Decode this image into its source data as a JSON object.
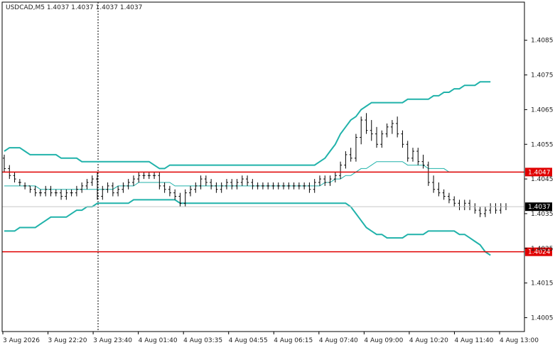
{
  "header": {
    "label": "USDCAD,M5  1.4037 1.4037 1.4037 1.4037"
  },
  "chart_data": {
    "type": "candlestick",
    "symbol": "USDCAD",
    "timeframe": "M5",
    "ylim": [
      1.4001,
      1.4096
    ],
    "y_ticks": [
      "1.4085",
      "1.4075",
      "1.4065",
      "1.4055",
      "1.4045",
      "1.4035",
      "1.4025",
      "1.4015",
      "1.4005"
    ],
    "x_ticks": [
      "3 Aug 2026",
      "3 Aug 22:20",
      "3 Aug 23:40",
      "4 Aug 01:40",
      "4 Aug 03:35",
      "4 Aug 04:55",
      "4 Aug 06:15",
      "4 Aug 07:40",
      "4 Aug 09:00",
      "4 Aug 10:20",
      "4 Aug 11:40",
      "4 Aug 13:00"
    ],
    "horizontal_lines": [
      {
        "label": "1.4047",
        "value": 1.4047,
        "color": "#e00000"
      },
      {
        "label": "1.4024",
        "value": 1.4024,
        "color": "#e00000"
      }
    ],
    "current_price": {
      "label": "1.4037",
      "value": 1.4037
    },
    "series": [
      {
        "name": "",
        "kind": "ohlc",
        "color": "#000000",
        "values": [
          [
            1.4051,
            1.4052,
            1.4047,
            1.4048
          ],
          [
            1.4048,
            1.4049,
            1.4045,
            1.4046
          ],
          [
            1.4046,
            1.4047,
            1.4044,
            1.4045
          ],
          [
            1.4044,
            1.4045,
            1.4043,
            1.4044
          ],
          [
            1.4043,
            1.4044,
            1.4042,
            1.4043
          ],
          [
            1.4043,
            1.4043,
            1.4041,
            1.4042
          ],
          [
            1.4042,
            1.4043,
            1.404,
            1.4041
          ],
          [
            1.4041,
            1.4042,
            1.404,
            1.4041
          ],
          [
            1.4041,
            1.4043,
            1.404,
            1.4042
          ],
          [
            1.4042,
            1.4043,
            1.404,
            1.4041
          ],
          [
            1.4041,
            1.4042,
            1.404,
            1.4041
          ],
          [
            1.4041,
            1.4042,
            1.4039,
            1.404
          ],
          [
            1.404,
            1.4042,
            1.4039,
            1.4041
          ],
          [
            1.4041,
            1.4042,
            1.404,
            1.4041
          ],
          [
            1.4041,
            1.4043,
            1.404,
            1.4042
          ],
          [
            1.4042,
            1.4044,
            1.4041,
            1.4043
          ],
          [
            1.4043,
            1.4045,
            1.4042,
            1.4044
          ],
          [
            1.4044,
            1.4046,
            1.4043,
            1.4045
          ],
          [
            1.4045,
            1.4047,
            1.4039,
            1.404
          ],
          [
            1.404,
            1.4043,
            1.4039,
            1.4042
          ],
          [
            1.4042,
            1.4044,
            1.4041,
            1.4043
          ],
          [
            1.4043,
            1.4044,
            1.404,
            1.4041
          ],
          [
            1.4041,
            1.4043,
            1.404,
            1.4042
          ],
          [
            1.4042,
            1.4044,
            1.4041,
            1.4043
          ],
          [
            1.4043,
            1.4045,
            1.4042,
            1.4044
          ],
          [
            1.4044,
            1.4046,
            1.4043,
            1.4045
          ],
          [
            1.4045,
            1.4047,
            1.4044,
            1.4046
          ],
          [
            1.4046,
            1.4047,
            1.4045,
            1.4046
          ],
          [
            1.4046,
            1.4047,
            1.4045,
            1.4046
          ],
          [
            1.4046,
            1.4047,
            1.4045,
            1.4046
          ],
          [
            1.4046,
            1.4047,
            1.4042,
            1.4043
          ],
          [
            1.4043,
            1.4044,
            1.4041,
            1.4042
          ],
          [
            1.4042,
            1.4043,
            1.404,
            1.4041
          ],
          [
            1.4041,
            1.4042,
            1.4039,
            1.404
          ],
          [
            1.404,
            1.4041,
            1.4037,
            1.4038
          ],
          [
            1.4038,
            1.4042,
            1.4037,
            1.4041
          ],
          [
            1.4041,
            1.4043,
            1.404,
            1.4042
          ],
          [
            1.4042,
            1.4044,
            1.4041,
            1.4043
          ],
          [
            1.4043,
            1.4046,
            1.4042,
            1.4045
          ],
          [
            1.4045,
            1.4046,
            1.4043,
            1.4044
          ],
          [
            1.4044,
            1.4045,
            1.4042,
            1.4043
          ],
          [
            1.4043,
            1.4044,
            1.4041,
            1.4042
          ],
          [
            1.4042,
            1.4044,
            1.4041,
            1.4043
          ],
          [
            1.4043,
            1.4045,
            1.4042,
            1.4044
          ],
          [
            1.4044,
            1.4045,
            1.4042,
            1.4043
          ],
          [
            1.4043,
            1.4045,
            1.4042,
            1.4044
          ],
          [
            1.4044,
            1.4046,
            1.4043,
            1.4045
          ],
          [
            1.4045,
            1.4046,
            1.4043,
            1.4044
          ],
          [
            1.4044,
            1.4045,
            1.4042,
            1.4043
          ],
          [
            1.4043,
            1.4044,
            1.4042,
            1.4043
          ],
          [
            1.4043,
            1.4044,
            1.4042,
            1.4043
          ],
          [
            1.4043,
            1.4044,
            1.4042,
            1.4043
          ],
          [
            1.4043,
            1.4044,
            1.4042,
            1.4043
          ],
          [
            1.4043,
            1.4044,
            1.4042,
            1.4043
          ],
          [
            1.4043,
            1.4044,
            1.4042,
            1.4043
          ],
          [
            1.4043,
            1.4044,
            1.4042,
            1.4043
          ],
          [
            1.4043,
            1.4044,
            1.4042,
            1.4043
          ],
          [
            1.4043,
            1.4044,
            1.4042,
            1.4043
          ],
          [
            1.4043,
            1.4044,
            1.4042,
            1.4043
          ],
          [
            1.4043,
            1.4044,
            1.4041,
            1.4042
          ],
          [
            1.4042,
            1.4045,
            1.4041,
            1.4044
          ],
          [
            1.4044,
            1.4046,
            1.4043,
            1.4045
          ],
          [
            1.4045,
            1.4046,
            1.4043,
            1.4044
          ],
          [
            1.4044,
            1.4046,
            1.4043,
            1.4045
          ],
          [
            1.4045,
            1.4047,
            1.4044,
            1.4046
          ],
          [
            1.4046,
            1.405,
            1.4045,
            1.4049
          ],
          [
            1.4049,
            1.4053,
            1.4048,
            1.4052
          ],
          [
            1.4052,
            1.4054,
            1.405,
            1.4051
          ],
          [
            1.4051,
            1.4058,
            1.405,
            1.4057
          ],
          [
            1.4057,
            1.4063,
            1.4055,
            1.4062
          ],
          [
            1.4062,
            1.4064,
            1.4058,
            1.4059
          ],
          [
            1.4059,
            1.4062,
            1.4056,
            1.4058
          ],
          [
            1.4058,
            1.406,
            1.4054,
            1.4055
          ],
          [
            1.4055,
            1.4059,
            1.4054,
            1.4058
          ],
          [
            1.4058,
            1.4061,
            1.4057,
            1.406
          ],
          [
            1.406,
            1.4062,
            1.4058,
            1.4061
          ],
          [
            1.4061,
            1.4063,
            1.4057,
            1.4058
          ],
          [
            1.4058,
            1.4059,
            1.4054,
            1.4055
          ],
          [
            1.4055,
            1.4056,
            1.405,
            1.4051
          ],
          [
            1.4051,
            1.4054,
            1.405,
            1.4053
          ],
          [
            1.4053,
            1.4054,
            1.4049,
            1.405
          ],
          [
            1.405,
            1.4052,
            1.4048,
            1.4049
          ],
          [
            1.4049,
            1.405,
            1.4043,
            1.4044
          ],
          [
            1.4044,
            1.4046,
            1.4041,
            1.4042
          ],
          [
            1.4042,
            1.4044,
            1.404,
            1.4041
          ],
          [
            1.4041,
            1.4042,
            1.4039,
            1.404
          ],
          [
            1.404,
            1.4041,
            1.4038,
            1.4039
          ],
          [
            1.4039,
            1.404,
            1.4037,
            1.4038
          ],
          [
            1.4038,
            1.4039,
            1.4036,
            1.4037
          ],
          [
            1.4037,
            1.4039,
            1.4036,
            1.4038
          ],
          [
            1.4038,
            1.4039,
            1.4036,
            1.4037
          ],
          [
            1.4037,
            1.4038,
            1.4035,
            1.4036
          ],
          [
            1.4036,
            1.4037,
            1.4034,
            1.4035
          ],
          [
            1.4035,
            1.4037,
            1.4034,
            1.4036
          ],
          [
            1.4036,
            1.4038,
            1.4035,
            1.4037
          ],
          [
            1.4037,
            1.4038,
            1.4035,
            1.4036
          ],
          [
            1.4036,
            1.4038,
            1.4035,
            1.4037
          ],
          [
            1.4037,
            1.4038,
            1.4036,
            1.4037
          ]
        ]
      },
      {
        "name": "",
        "kind": "line",
        "color": "#20b2aa",
        "values": [
          1.4053,
          1.4054,
          1.4054,
          1.4054,
          1.4053,
          1.4052,
          1.4052,
          1.4052,
          1.4052,
          1.4052,
          1.4052,
          1.4051,
          1.4051,
          1.4051,
          1.4051,
          1.405,
          1.405,
          1.405,
          1.405,
          1.405,
          1.405,
          1.405,
          1.405,
          1.405,
          1.405,
          1.405,
          1.405,
          1.405,
          1.405,
          1.4049,
          1.4048,
          1.4048,
          1.4049,
          1.4049,
          1.4049,
          1.4049,
          1.4049,
          1.4049,
          1.4049,
          1.4049,
          1.4049,
          1.4049,
          1.4049,
          1.4049,
          1.4049,
          1.4049,
          1.4049,
          1.4049,
          1.4049,
          1.4049,
          1.4049,
          1.4049,
          1.4049,
          1.4049,
          1.4049,
          1.4049,
          1.4049,
          1.4049,
          1.4049,
          1.4049,
          1.4049,
          1.405,
          1.4051,
          1.4053,
          1.4055,
          1.4058,
          1.406,
          1.4062,
          1.4063,
          1.4065,
          1.4066,
          1.4067,
          1.4067,
          1.4067,
          1.4067,
          1.4067,
          1.4067,
          1.4067,
          1.4068,
          1.4068,
          1.4068,
          1.4068,
          1.4068,
          1.4069,
          1.4069,
          1.407,
          1.407,
          1.4071,
          1.4071,
          1.4072,
          1.4072,
          1.4072,
          1.4073,
          1.4073,
          1.4073
        ]
      },
      {
        "name": "",
        "kind": "line",
        "color": "#20b2aa",
        "values": [
          1.4043,
          1.4043,
          1.4043,
          1.4043,
          1.4043,
          1.4043,
          1.4043,
          1.4042,
          1.4042,
          1.4042,
          1.4042,
          1.4042,
          1.4042,
          1.4042,
          1.4042,
          1.4042,
          1.4042,
          1.4042,
          1.4042,
          1.4042,
          1.4042,
          1.4042,
          1.4043,
          1.4043,
          1.4043,
          1.4043,
          1.4044,
          1.4044,
          1.4044,
          1.4044,
          1.4044,
          1.4044,
          1.4044,
          1.4043,
          1.4043,
          1.4043,
          1.4043,
          1.4043,
          1.4043,
          1.4043,
          1.4043,
          1.4043,
          1.4043,
          1.4043,
          1.4043,
          1.4043,
          1.4043,
          1.4043,
          1.4043,
          1.4043,
          1.4043,
          1.4043,
          1.4043,
          1.4043,
          1.4043,
          1.4043,
          1.4043,
          1.4043,
          1.4043,
          1.4043,
          1.4043,
          1.4043,
          1.4044,
          1.4044,
          1.4045,
          1.4045,
          1.4046,
          1.4046,
          1.4047,
          1.4048,
          1.4048,
          1.4049,
          1.405,
          1.405,
          1.405,
          1.405,
          1.405,
          1.405,
          1.4049,
          1.4049,
          1.4049,
          1.4049,
          1.4048,
          1.4048,
          1.4048,
          1.4048,
          1.4047,
          1.4047,
          1.4047,
          1.4047,
          1.4047,
          1.4047,
          1.4047,
          1.4047,
          1.4047
        ]
      },
      {
        "name": "",
        "kind": "line",
        "color": "#20b2aa",
        "values": [
          1.403,
          1.403,
          1.403,
          1.4031,
          1.4031,
          1.4031,
          1.4031,
          1.4032,
          1.4033,
          1.4034,
          1.4034,
          1.4034,
          1.4034,
          1.4035,
          1.4036,
          1.4036,
          1.4037,
          1.4037,
          1.4038,
          1.4038,
          1.4038,
          1.4038,
          1.4038,
          1.4038,
          1.4038,
          1.4039,
          1.4039,
          1.4039,
          1.4039,
          1.4039,
          1.4039,
          1.4039,
          1.4039,
          1.4039,
          1.4038,
          1.4038,
          1.4038,
          1.4038,
          1.4038,
          1.4038,
          1.4038,
          1.4038,
          1.4038,
          1.4038,
          1.4038,
          1.4038,
          1.4038,
          1.4038,
          1.4038,
          1.4038,
          1.4038,
          1.4038,
          1.4038,
          1.4038,
          1.4038,
          1.4038,
          1.4038,
          1.4038,
          1.4038,
          1.4038,
          1.4038,
          1.4038,
          1.4038,
          1.4038,
          1.4038,
          1.4038,
          1.4038,
          1.4037,
          1.4035,
          1.4033,
          1.4031,
          1.403,
          1.4029,
          1.4029,
          1.4028,
          1.4028,
          1.4028,
          1.4028,
          1.4029,
          1.4029,
          1.4029,
          1.4029,
          1.403,
          1.403,
          1.403,
          1.403,
          1.403,
          1.403,
          1.4029,
          1.4029,
          1.4028,
          1.4027,
          1.4026,
          1.4024,
          1.4023
        ]
      }
    ]
  }
}
